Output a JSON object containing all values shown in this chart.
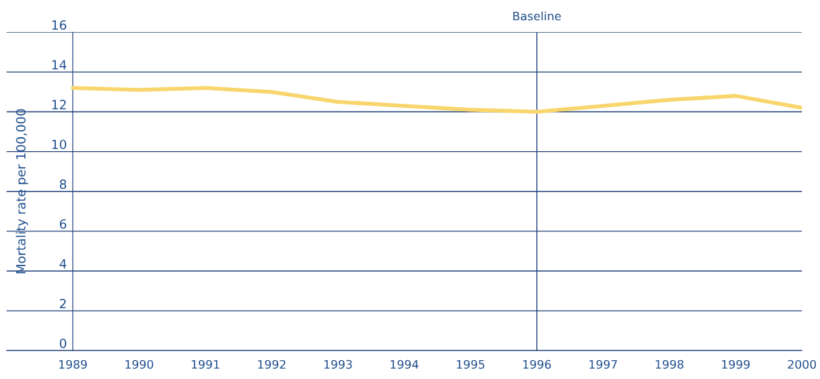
{
  "chart_data": {
    "type": "line",
    "ylabel": "Mortality rate per 100,000",
    "x": [
      1989,
      1990,
      1991,
      1992,
      1993,
      1994,
      1995,
      1996,
      1997,
      1998,
      1999,
      2000
    ],
    "series": [
      {
        "color": "#f8d66d",
        "values": [
          13.2,
          13.1,
          13.2,
          13.0,
          12.5,
          12.3,
          12.1,
          12.0,
          12.3,
          12.6,
          12.8,
          12.2
        ]
      }
    ],
    "xlim": [
      1988,
      2000
    ],
    "xticks": [
      1989,
      1990,
      1991,
      1992,
      1993,
      1994,
      1995,
      1996,
      1997,
      1998,
      1999,
      2000
    ],
    "ylim": [
      0,
      16
    ],
    "yticks": [
      0,
      2,
      4,
      6,
      8,
      10,
      12,
      14,
      16
    ],
    "ref_lines": [
      {
        "axis": "x",
        "value": 1996,
        "label": "Baseline",
        "color": "#1f3f7a"
      }
    ],
    "grid": "y",
    "legend": false,
    "marker": "none",
    "line_style": "solid"
  }
}
